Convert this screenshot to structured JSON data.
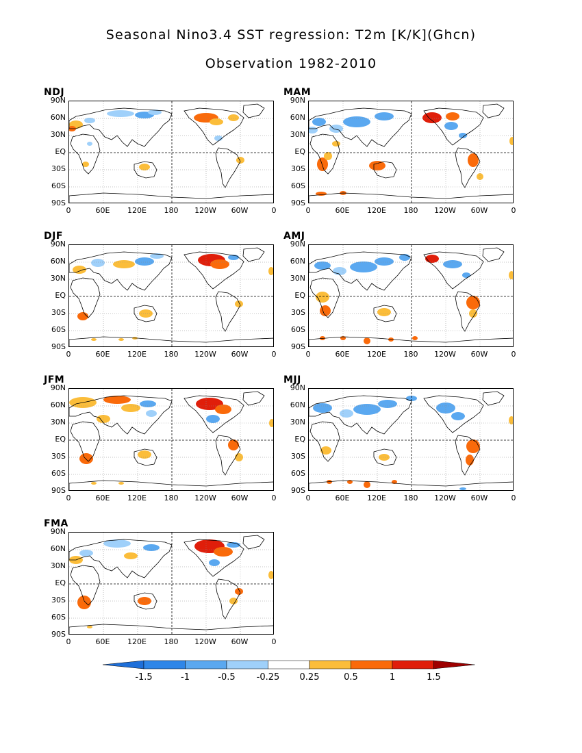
{
  "title": "Seasonal Nino3.4 SST regression: T2m [K/K](Ghcn)",
  "subtitle": "Observation 1982-2010",
  "y_axis_labels": [
    "90N",
    "60N",
    "30N",
    "EQ",
    "30S",
    "60S",
    "90S"
  ],
  "x_axis_labels": [
    "0",
    "60E",
    "120E",
    "180",
    "120W",
    "60W",
    "0"
  ],
  "panels": [
    {
      "id": "ndj",
      "label": "NDJ",
      "col": 0,
      "row": 0
    },
    {
      "id": "mam",
      "label": "MAM",
      "col": 1,
      "row": 0
    },
    {
      "id": "djf",
      "label": "DJF",
      "col": 0,
      "row": 1
    },
    {
      "id": "amj",
      "label": "AMJ",
      "col": 1,
      "row": 1
    },
    {
      "id": "jfm",
      "label": "JFM",
      "col": 0,
      "row": 2
    },
    {
      "id": "mjj",
      "label": "MJJ",
      "col": 1,
      "row": 2
    },
    {
      "id": "fma",
      "label": "FMA",
      "col": 0,
      "row": 3
    }
  ],
  "colorbar": {
    "tick_labels": [
      "-1.5",
      "-1",
      "-0.5",
      "-0.25",
      "0.25",
      "0.5",
      "1",
      "1.5"
    ],
    "colors": [
      "#1e6fd9",
      "#2e86e8",
      "#5aa8f0",
      "#9fd0fa",
      "#ffffff",
      "#fbbd3a",
      "#fa6a0a",
      "#e01e0a",
      "#9e0000"
    ],
    "min_arrow_color": "#1e6fd9",
    "max_arrow_color": "#9e0000"
  }
}
